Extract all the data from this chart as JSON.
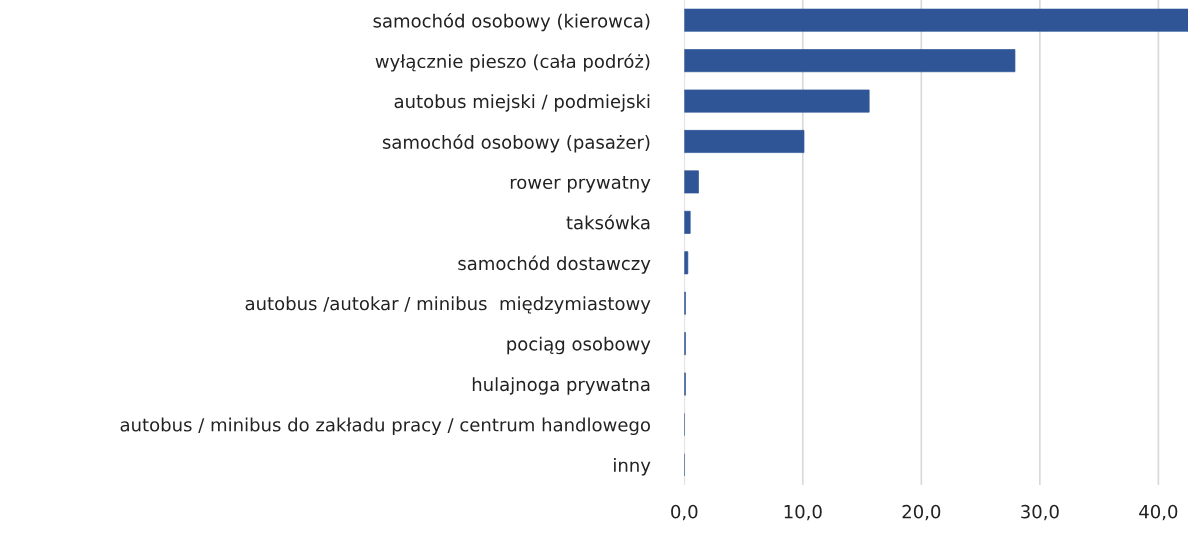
{
  "chart_data": {
    "type": "bar",
    "orientation": "horizontal",
    "categories": [
      "samochód osobowy (kierowca)",
      "wyłącznie pieszo (cała podróż)",
      "autobus miejski / podmiejski",
      "samochód osobowy (pasażer)",
      "rower prywatny",
      "taksówka",
      "samochód dostawczy",
      "autobus /autokar / minibus  międzymiastowy",
      "pociąg osobowy",
      "hulajnoga prywatna",
      "autobus / minibus do zakładu pracy / centrum handlowego",
      "inny"
    ],
    "values": [
      42.5,
      27.9,
      15.6,
      10.1,
      1.2,
      0.5,
      0.3,
      0.1,
      0.1,
      0.1,
      0.0,
      0.0
    ],
    "color": "#2f5597",
    "xlim": [
      0,
      42.5
    ],
    "xticks": [
      {
        "value": 0,
        "label": "0,0"
      },
      {
        "value": 10,
        "label": "10,0"
      },
      {
        "value": 20,
        "label": "20,0"
      },
      {
        "value": 30,
        "label": "30,0"
      },
      {
        "value": 40,
        "label": "40,0"
      }
    ],
    "grid": "x"
  }
}
